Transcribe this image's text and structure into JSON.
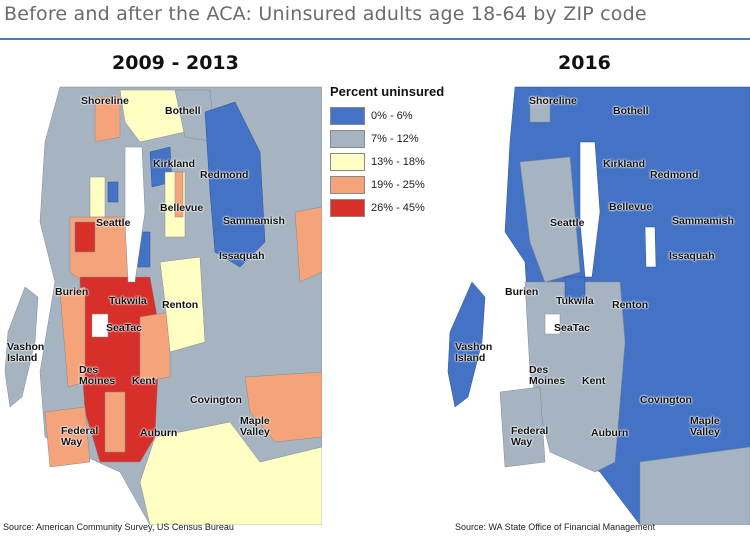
{
  "title": "Before and after the ACA: Uninsured adults age 18-64 by ZIP code",
  "legend": {
    "title": "Percent uninsured",
    "items": [
      {
        "label": "0% - 6%",
        "color": "#4472c4"
      },
      {
        "label": "7% - 12%",
        "color": "#a6b4c2"
      },
      {
        "label": "13% - 18%",
        "color": "#ffffc4"
      },
      {
        "label": "19% - 25%",
        "color": "#f4a37b"
      },
      {
        "label": "26% - 45%",
        "color": "#d7302b"
      }
    ]
  },
  "maps": [
    {
      "title": "2009 - 2013",
      "source": "Source: American Community Survey, US Census Bureau",
      "places": [
        "Shoreline",
        "Bothell",
        "Kirkland",
        "Redmond",
        "Bellevue",
        "Seattle",
        "Sammamish",
        "Issaquah",
        "Burien",
        "Tukwila",
        "Renton",
        "SeaTac",
        "Vashon Island",
        "Des Moines",
        "Kent",
        "Covington",
        "Federal Way",
        "Auburn",
        "Maple Valley"
      ]
    },
    {
      "title": "2016",
      "source": "Source: WA State Office of Financial Management",
      "places": [
        "Shoreline",
        "Bothell",
        "Kirkland",
        "Redmond",
        "Bellevue",
        "Seattle",
        "Sammamish",
        "Issaquah",
        "Burien",
        "Tukwila",
        "Renton",
        "SeaTac",
        "Vashon Island",
        "Des Moines",
        "Kent",
        "Covington",
        "Federal Way",
        "Auburn",
        "Maple Valley"
      ]
    }
  ]
}
